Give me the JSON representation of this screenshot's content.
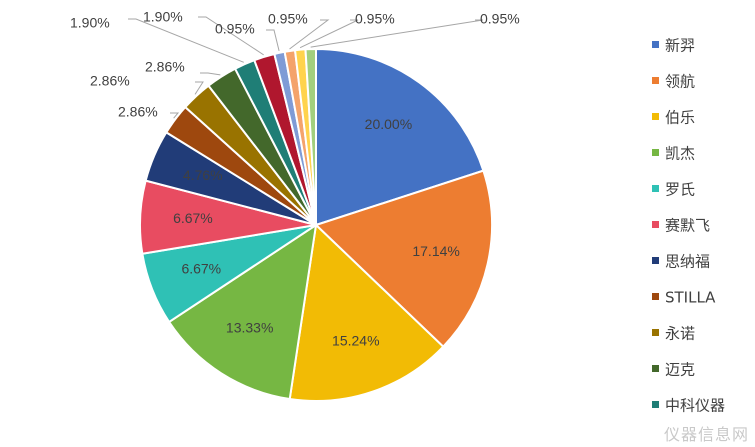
{
  "chart_data": {
    "type": "pie",
    "title": "",
    "legend_position": "right",
    "slices": [
      {
        "name": "新羿",
        "value": 20.0,
        "label": "20.00%",
        "color": "#4472C4"
      },
      {
        "name": "领航",
        "value": 17.14,
        "label": "17.14%",
        "color": "#ED7D31"
      },
      {
        "name": "伯乐",
        "value": 15.24,
        "label": "15.24%",
        "color": "#F2BB05"
      },
      {
        "name": "凯杰",
        "value": 13.33,
        "label": "13.33%",
        "color": "#76B743"
      },
      {
        "name": "罗氏",
        "value": 6.67,
        "label": "6.67%",
        "color": "#2FC1B5"
      },
      {
        "name": "赛默飞",
        "value": 6.67,
        "label": "6.67%",
        "color": "#E84C61"
      },
      {
        "name": "思纳福",
        "value": 4.76,
        "label": "4.76%",
        "color": "#213C78"
      },
      {
        "name": "STILLA",
        "value": 2.86,
        "label": "2.86%",
        "color": "#9E480E"
      },
      {
        "name": "永诺",
        "value": 2.86,
        "label": "2.86%",
        "color": "#997300"
      },
      {
        "name": "迈克",
        "value": 2.86,
        "label": "2.86%",
        "color": "#43682B"
      },
      {
        "name": "中科仪器",
        "value": 1.9,
        "label": "1.90%",
        "color": "#1F7E76"
      },
      {
        "name": "",
        "value": 1.9,
        "label": "1.90%",
        "color": "#B0172E"
      },
      {
        "name": "",
        "value": 0.95,
        "label": "0.95%",
        "color": "#7F9BD6"
      },
      {
        "name": "",
        "value": 0.95,
        "label": "0.95%",
        "color": "#F4A36B"
      },
      {
        "name": "",
        "value": 0.95,
        "label": "0.95%",
        "color": "#FFD34D"
      },
      {
        "name": "",
        "value": 0.95,
        "label": "0.95%",
        "color": "#A2CF7E"
      }
    ]
  },
  "watermark": "仪器信息网"
}
